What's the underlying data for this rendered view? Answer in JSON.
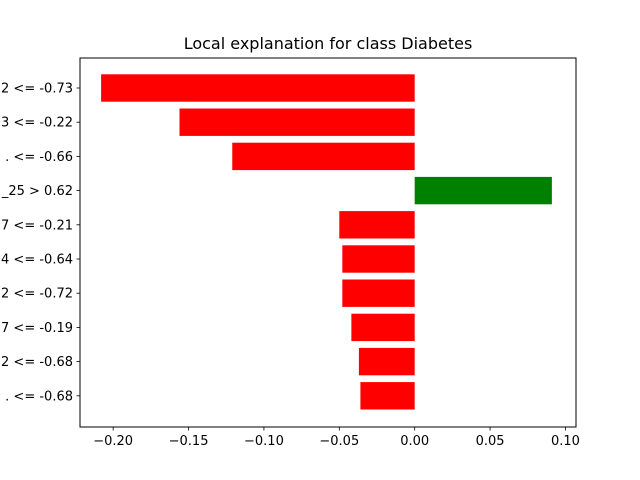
{
  "chart_data": {
    "type": "bar",
    "orientation": "horizontal",
    "title": "Local explanation for class Diabetes",
    "xlabel": "",
    "ylabel": "",
    "xlim": [
      -0.222,
      0.107
    ],
    "grid": false,
    "categories": [
      "2 <= -0.73",
      "3 <= -0.22",
      ". <= -0.66",
      "_25 > 0.62",
      "7 <= -0.21",
      "4 <= -0.64",
      "2 <= -0.72",
      "7 <= -0.19",
      "2 <= -0.68",
      ". <= -0.68"
    ],
    "values": [
      -0.208,
      -0.156,
      -0.121,
      0.091,
      -0.05,
      -0.048,
      -0.048,
      -0.042,
      -0.037,
      -0.036
    ],
    "xticks": [
      -0.2,
      -0.15,
      -0.1,
      -0.05,
      0.0,
      0.05,
      0.1
    ],
    "xtick_labels": [
      "−0.20",
      "−0.15",
      "−0.10",
      "−0.05",
      "0.00",
      "0.05",
      "0.10"
    ],
    "colors": {
      "negative": "#ff0000",
      "positive": "#008000"
    }
  }
}
